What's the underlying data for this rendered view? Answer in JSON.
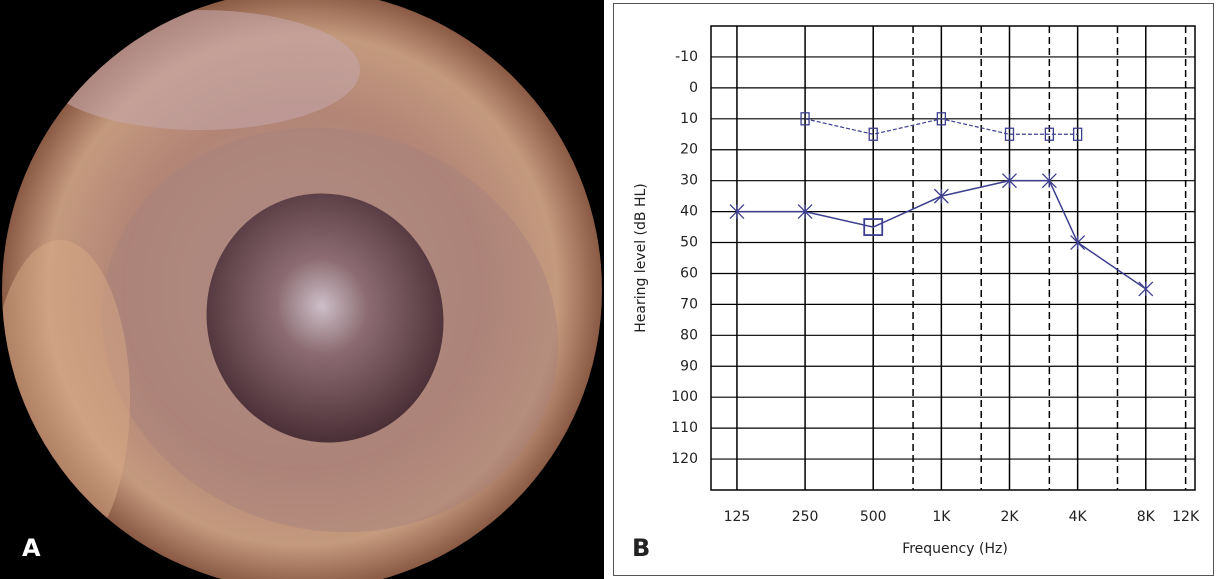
{
  "photo": {
    "label": "A"
  },
  "chart_data": {
    "type": "line",
    "label": "B",
    "xlabel": "Frequency (Hz)",
    "ylabel": "Hearing level (dB HL)",
    "xscale": "log",
    "xlim": [
      96,
      13200
    ],
    "xticks": [
      125,
      250,
      500,
      {
        "value": 1000,
        "label": "1K"
      },
      {
        "value": 2000,
        "label": "2K"
      },
      {
        "value": 4000,
        "label": "4K"
      },
      {
        "value": 8000,
        "label": "8K"
      },
      {
        "value": 12000,
        "label": "12K"
      }
    ],
    "x_dashed_grid": [
      750,
      1500,
      3000,
      6000,
      12000
    ],
    "ylim": [
      -20,
      130
    ],
    "y_reversed": true,
    "yticks": [
      -10,
      0,
      10,
      20,
      30,
      40,
      50,
      60,
      70,
      80,
      90,
      100,
      110,
      120
    ],
    "grid": true,
    "series": [
      {
        "color": "#3d3f8f",
        "line": "solid",
        "x": [
          125,
          250,
          500,
          1000,
          2000,
          3000,
          4000,
          8000
        ],
        "values": [
          40,
          40,
          45,
          35,
          30,
          30,
          50,
          65
        ],
        "markers": [
          "x",
          "x",
          "square",
          "x",
          "x",
          "x",
          "x",
          "x"
        ]
      },
      {
        "color": "#3d3f8f",
        "line": "dashed",
        "x": [
          250,
          500,
          1000,
          2000,
          3000,
          4000
        ],
        "values": [
          10,
          15,
          10,
          15,
          15,
          15
        ],
        "markers": [
          "bracket",
          "bracket",
          "bracket",
          "bracket",
          "bracket",
          "bracket"
        ]
      }
    ]
  }
}
